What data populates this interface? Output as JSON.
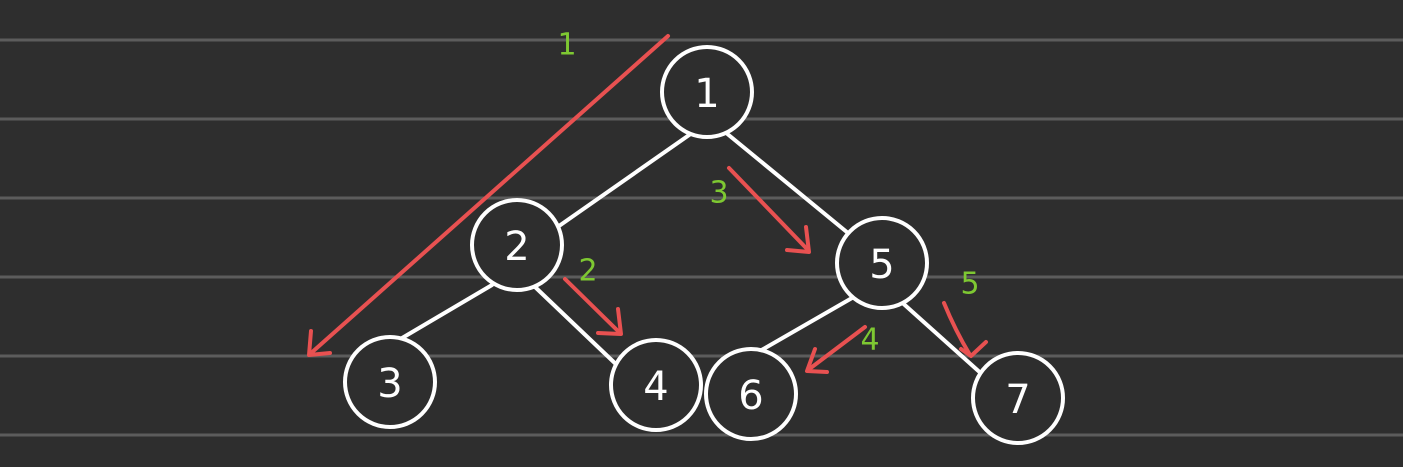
{
  "colors": {
    "background": "#2e2e2e",
    "rule_line": "#5c5c5c",
    "node_stroke": "#ffffff",
    "edge": "#ffffff",
    "arrow": "#e85151",
    "step_label": "#7ec832"
  },
  "nodes": [
    {
      "id": "n1",
      "label": "1"
    },
    {
      "id": "n2",
      "label": "2"
    },
    {
      "id": "n3",
      "label": "3"
    },
    {
      "id": "n4",
      "label": "4"
    },
    {
      "id": "n5",
      "label": "5"
    },
    {
      "id": "n6",
      "label": "6"
    },
    {
      "id": "n7",
      "label": "7"
    }
  ],
  "edges": [
    {
      "from": "n1",
      "to": "n2"
    },
    {
      "from": "n1",
      "to": "n5"
    },
    {
      "from": "n2",
      "to": "n3"
    },
    {
      "from": "n2",
      "to": "n4"
    },
    {
      "from": "n5",
      "to": "n6"
    },
    {
      "from": "n5",
      "to": "n7"
    }
  ],
  "traversal_steps": [
    {
      "step": "1"
    },
    {
      "step": "2"
    },
    {
      "step": "3"
    },
    {
      "step": "4"
    },
    {
      "step": "5"
    }
  ]
}
